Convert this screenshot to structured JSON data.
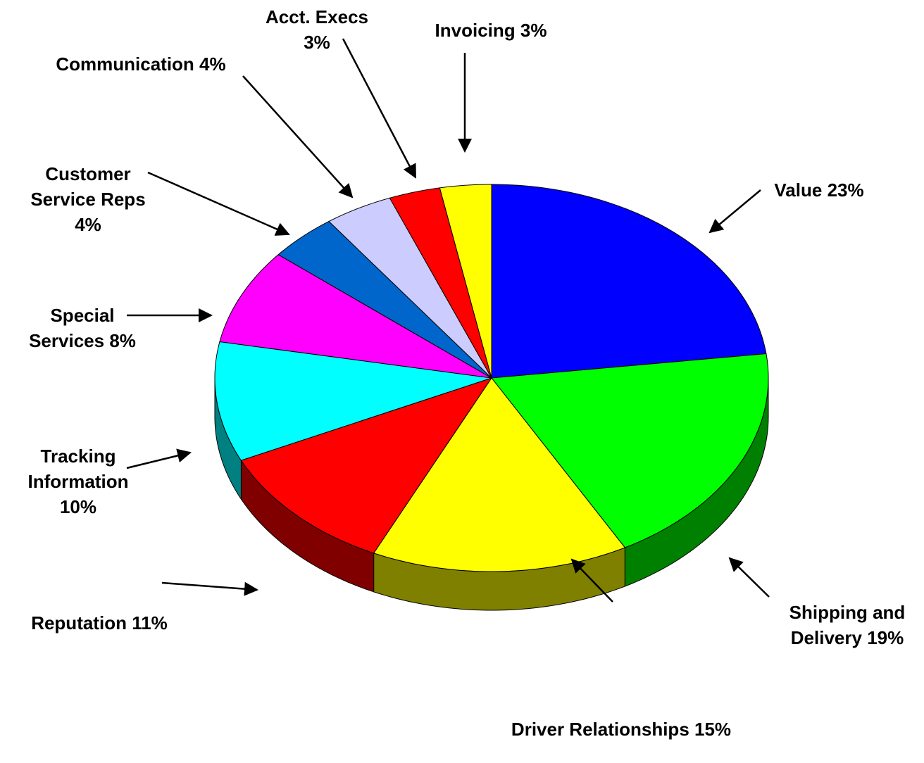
{
  "chart_data": {
    "type": "pie",
    "categories": [
      "Value",
      "Shipping and Delivery",
      "Driver Relationships",
      "Reputation",
      "Tracking Information",
      "Special Services",
      "Customer Service Reps",
      "Communication",
      "Acct. Execs",
      "Invoicing"
    ],
    "values": [
      23,
      19,
      15,
      11,
      10,
      8,
      4,
      4,
      3,
      3
    ],
    "value_labels": [
      "23%",
      "19%",
      "15%",
      "11%",
      "10%",
      "8%",
      "4%",
      "4%",
      "3%",
      "3%"
    ],
    "colors": [
      "#0000ff",
      "#00ff00",
      "#ffff00",
      "#ff0000",
      "#00ffff",
      "#ff00ff",
      "#0066cc",
      "#ccccff",
      "#ff0000",
      "#ffff00"
    ],
    "three_d": true
  }
}
